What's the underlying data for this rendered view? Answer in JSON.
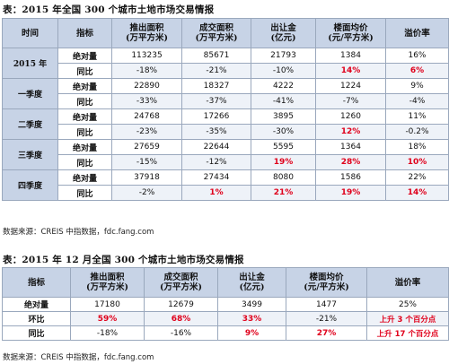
{
  "table1": {
    "title": "表：2015 年全国 300 个城市土地市场交易情报",
    "headers": {
      "period": "时间",
      "metric": "指标",
      "supply_line1": "推出面积",
      "supply_line2": "(万平方米)",
      "deal_line1": "成交面积",
      "deal_line2": "(万平方米)",
      "revenue_line1": "出让金",
      "revenue_line2": "(亿元)",
      "price_line1": "楼面均价",
      "price_line2": "(元/平方米)",
      "premium": "溢价率"
    },
    "groups": [
      {
        "period": "2015 年",
        "abs": {
          "label": "绝对量",
          "supply": "113235",
          "deal": "85671",
          "revenue": "21793",
          "price": "1384",
          "premium": "16%"
        },
        "yoy": {
          "label": "同比",
          "supply": "-18%",
          "deal": "-21%",
          "revenue": "-10%",
          "price": "14%",
          "premium": "6%"
        }
      },
      {
        "period": "一季度",
        "abs": {
          "label": "绝对量",
          "supply": "22890",
          "deal": "18327",
          "revenue": "4222",
          "price": "1224",
          "premium": "9%"
        },
        "yoy": {
          "label": "同比",
          "supply": "-33%",
          "deal": "-37%",
          "revenue": "-41%",
          "price": "-7%",
          "premium": "-4%"
        }
      },
      {
        "period": "二季度",
        "abs": {
          "label": "绝对量",
          "supply": "24768",
          "deal": "17266",
          "revenue": "3895",
          "price": "1260",
          "premium": "11%"
        },
        "yoy": {
          "label": "同比",
          "supply": "-23%",
          "deal": "-35%",
          "revenue": "-30%",
          "price": "12%",
          "premium": "-0.2%"
        }
      },
      {
        "period": "三季度",
        "abs": {
          "label": "绝对量",
          "supply": "27659",
          "deal": "22644",
          "revenue": "5595",
          "price": "1364",
          "premium": "18%"
        },
        "yoy": {
          "label": "同比",
          "supply": "-15%",
          "deal": "-12%",
          "revenue": "19%",
          "price": "28%",
          "premium": "10%"
        }
      },
      {
        "period": "四季度",
        "abs": {
          "label": "绝对量",
          "supply": "37918",
          "deal": "27434",
          "revenue": "8080",
          "price": "1586",
          "premium": "22%"
        },
        "yoy": {
          "label": "同比",
          "supply": "-2%",
          "deal": "1%",
          "revenue": "21%",
          "price": "19%",
          "premium": "14%"
        }
      }
    ],
    "source": "数据来源：CREIS 中指数据，fdc.fang.com"
  },
  "table2": {
    "title": "表：2015 年 12 月全国 300 个城市土地市场交易情报",
    "headers": {
      "metric": "指标",
      "supply_line1": "推出面积",
      "supply_line2": "(万平方米)",
      "deal_line1": "成交面积",
      "deal_line2": "(万平方米)",
      "revenue_line1": "出让金",
      "revenue_line2": "(亿元)",
      "price_line1": "楼面均价",
      "price_line2": "(元/平方米)",
      "premium": "溢价率"
    },
    "rows": [
      {
        "label": "绝对量",
        "supply": "17180",
        "deal": "12679",
        "revenue": "3499",
        "price": "1477",
        "premium": "25%"
      },
      {
        "label": "环比",
        "supply": "59%",
        "deal": "68%",
        "revenue": "33%",
        "price": "-21%",
        "premium": "上升 3 个百分点"
      },
      {
        "label": "同比",
        "supply": "-18%",
        "deal": "-16%",
        "revenue": "9%",
        "price": "27%",
        "premium": "上升 17 个百分点"
      }
    ],
    "source": "数据来源：CREIS 中指数据，fdc.fang.com"
  },
  "colors": {
    "header_bg": "#c7d3e6",
    "border": "#9aa8bd",
    "highlight_red": "#e0001b"
  }
}
